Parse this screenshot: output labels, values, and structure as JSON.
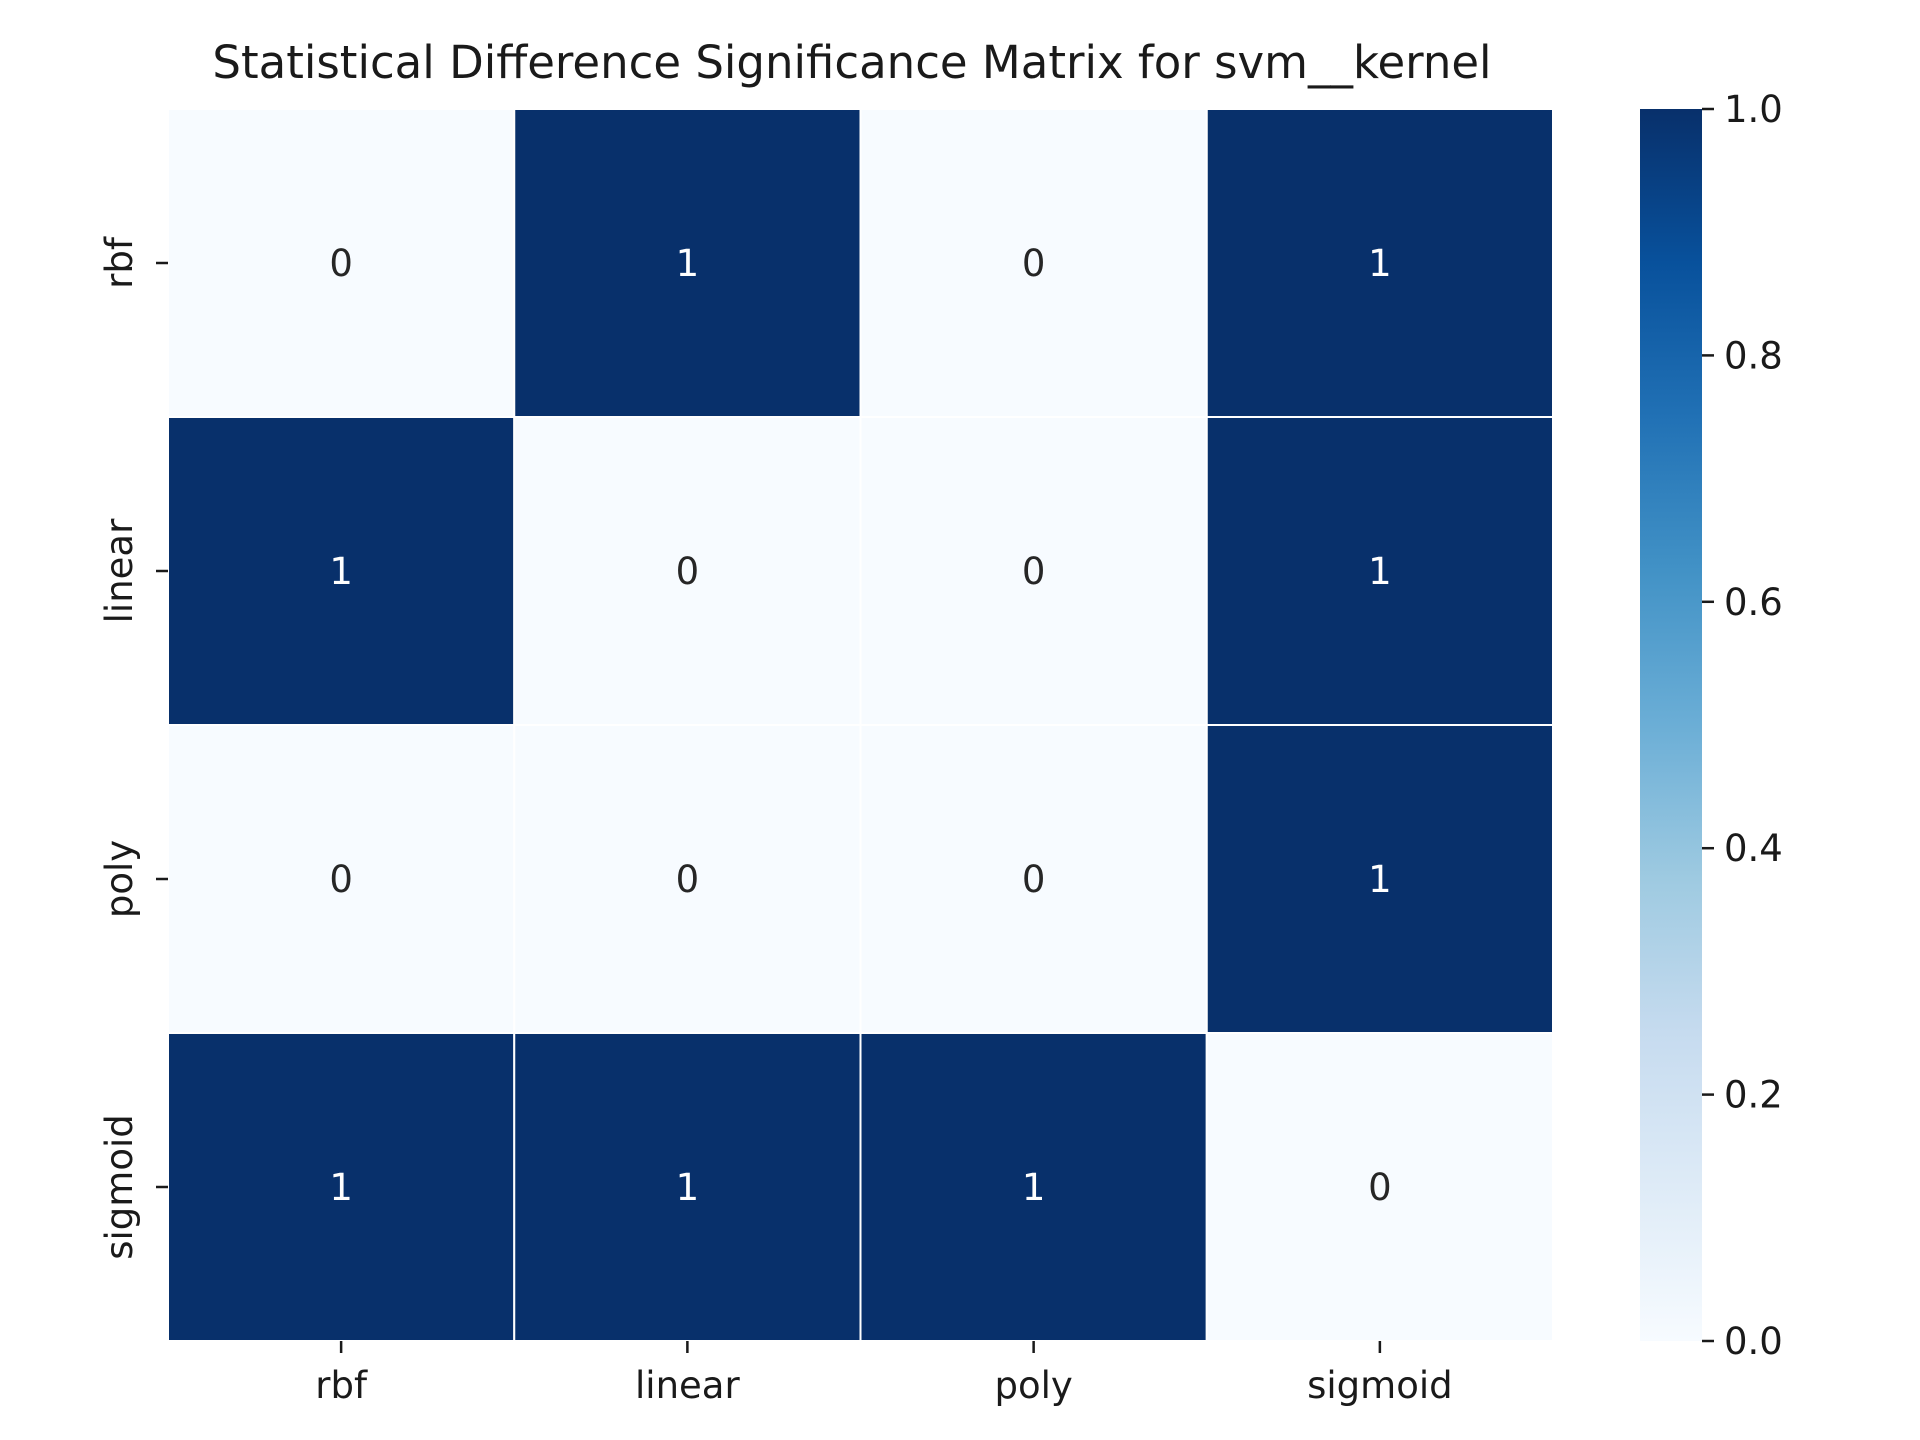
{
  "chart_data": {
    "type": "heatmap",
    "title": "Statistical Difference Significance Matrix for svm__kernel",
    "xlabel": "",
    "ylabel": "",
    "x_categories": [
      "rbf",
      "linear",
      "poly",
      "sigmoid"
    ],
    "y_categories": [
      "rbf",
      "linear",
      "poly",
      "sigmoid"
    ],
    "values": [
      [
        0,
        1,
        0,
        1
      ],
      [
        1,
        0,
        0,
        1
      ],
      [
        0,
        0,
        0,
        1
      ],
      [
        1,
        1,
        1,
        0
      ]
    ],
    "annotations": [
      [
        "0",
        "1",
        "0",
        "1"
      ],
      [
        "1",
        "0",
        "0",
        "1"
      ],
      [
        "0",
        "0",
        "0",
        "1"
      ],
      [
        "1",
        "1",
        "1",
        "0"
      ]
    ],
    "colormap": "Blues",
    "color_low": "#f7fbff",
    "color_high": "#08306b",
    "cell_border_color": "#ffffff",
    "annotation_color_on_dark": "#ffffff",
    "annotation_color_on_light": "#262626",
    "colorbar": {
      "range": [
        0.0,
        1.0
      ],
      "ticks": [
        "0.0",
        "0.2",
        "0.4",
        "0.6",
        "0.8",
        "1.0"
      ],
      "tick_values": [
        0.0,
        0.2,
        0.4,
        0.6,
        0.8,
        1.0
      ],
      "placement": "right"
    },
    "grid": false,
    "legend": "none"
  }
}
